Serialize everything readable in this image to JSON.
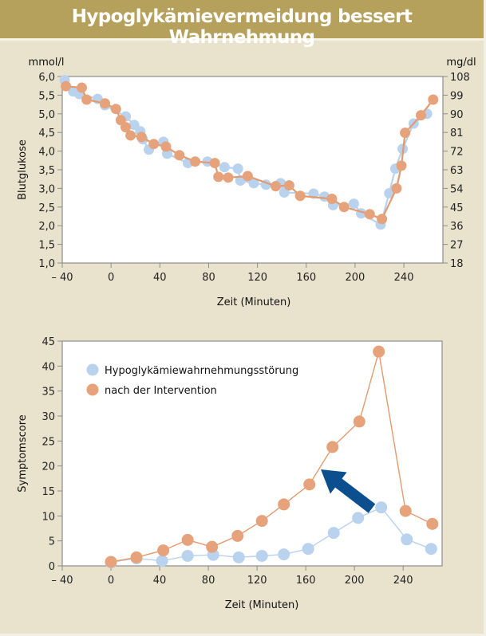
{
  "header": {
    "title": "Hypoglykämievermeidung bessert Wahrnehmung"
  },
  "colors": {
    "header_bg": "#b5a15c",
    "page_bg": "#e9e2cd",
    "blue_series": "#b9d2ee",
    "orange_series": "#e6a27a",
    "orange_line": "#e39a6e",
    "arrow": "#0b4f8f"
  },
  "chart_data": [
    {
      "type": "line",
      "name": "blood-glucose",
      "title": "",
      "xlabel": "Zeit (Minuten)",
      "ylabel": "Blutglukose",
      "y_unit_left": "mmol/l",
      "y_unit_right": "mg/dl",
      "xlim": [
        -40,
        272
      ],
      "ylim": [
        1.0,
        6.0
      ],
      "x_ticks": [
        -40,
        0,
        40,
        80,
        120,
        160,
        200,
        240
      ],
      "x_tick_labels": [
        "– 40",
        "0",
        "40",
        "80",
        "120",
        "160",
        "200",
        "240"
      ],
      "y_ticks": [
        6.0,
        5.5,
        5.0,
        4.5,
        4.0,
        3.5,
        3.0,
        2.5,
        2.0,
        1.5,
        1.0
      ],
      "y_tick_labels": [
        "6,0",
        "5,5",
        "5,0",
        "4,5",
        "4,0",
        "3,5",
        "3,0",
        "2,5",
        "2,0",
        "1,5",
        "1,0"
      ],
      "y2_tick_labels": [
        "108",
        "99",
        "90",
        "81",
        "72",
        "63",
        "54",
        "45",
        "36",
        "27",
        "18"
      ],
      "grid": false,
      "series": [
        {
          "name": "Hypoglykämiewahrnehmungsstörung",
          "color": "#b9d2ee",
          "x": [
            -38,
            -31,
            -26,
            -11,
            -5,
            12,
            19,
            24,
            26,
            31,
            43,
            46,
            63,
            79,
            93,
            104,
            106,
            117,
            127,
            139,
            142,
            166,
            175,
            182,
            199,
            205,
            221,
            228,
            233,
            239,
            248,
            259
          ],
          "y": [
            5.9,
            5.6,
            5.53,
            5.4,
            5.23,
            4.93,
            4.7,
            4.53,
            4.32,
            4.04,
            4.25,
            3.93,
            3.68,
            3.72,
            3.57,
            3.53,
            3.21,
            3.14,
            3.1,
            3.14,
            2.89,
            2.86,
            2.78,
            2.55,
            2.59,
            2.33,
            2.03,
            2.87,
            3.53,
            4.06,
            4.74,
            5.0
          ]
        },
        {
          "name": "nach der Intervention",
          "color": "#e6a27a",
          "x": [
            -37,
            -24,
            -20,
            -5,
            4,
            8,
            12,
            16,
            25,
            35,
            45,
            56,
            69,
            85,
            88,
            96,
            112,
            135,
            146,
            155,
            181,
            191,
            212,
            222,
            234,
            238,
            241,
            254,
            264
          ],
          "y": [
            5.74,
            5.7,
            5.38,
            5.28,
            5.13,
            4.83,
            4.64,
            4.42,
            4.38,
            4.19,
            4.12,
            3.89,
            3.72,
            3.68,
            3.31,
            3.29,
            3.33,
            3.06,
            3.08,
            2.8,
            2.72,
            2.5,
            2.31,
            2.18,
            3.0,
            3.61,
            4.49,
            4.96,
            5.38
          ]
        }
      ]
    },
    {
      "type": "line",
      "name": "symptom-score",
      "title": "",
      "xlabel": "Zeit (Minuten)",
      "ylabel": "Symptomscore",
      "xlim": [
        -40,
        272
      ],
      "ylim": [
        0,
        45
      ],
      "x_ticks": [
        -40,
        0,
        40,
        80,
        120,
        160,
        200,
        240
      ],
      "x_tick_labels": [
        "– 40",
        "0",
        "40",
        "80",
        "120",
        "160",
        "200",
        "240"
      ],
      "y_ticks": [
        45,
        40,
        35,
        30,
        25,
        20,
        15,
        10,
        5,
        0
      ],
      "y_tick_labels": [
        "45",
        "40",
        "35",
        "30",
        "25",
        "20",
        "15",
        "10",
        "5",
        "0"
      ],
      "grid": false,
      "legend_position": "top-left",
      "annotation": "arrow pointing up-left from blue peak toward orange curve",
      "series": [
        {
          "name": "Hypoglykämiewahrnehmungsstörung",
          "color": "#b9d2ee",
          "x": [
            0,
            21,
            42,
            63,
            84,
            105,
            124,
            142,
            162,
            183,
            203,
            222,
            243,
            263
          ],
          "y": [
            0.7,
            1.5,
            1.0,
            2.0,
            2.2,
            1.7,
            2.0,
            2.3,
            3.4,
            6.6,
            9.6,
            11.7,
            5.3,
            3.4
          ]
        },
        {
          "name": "nach der Intervention",
          "color": "#e6a27a",
          "x": [
            0,
            21,
            43,
            63,
            83,
            104,
            124,
            142,
            163,
            182,
            204,
            220,
            242,
            264
          ],
          "y": [
            0.8,
            1.7,
            3.1,
            5.2,
            3.8,
            6.0,
            9.0,
            12.3,
            16.3,
            23.8,
            28.9,
            42.9,
            11.0,
            8.4
          ]
        }
      ]
    }
  ]
}
